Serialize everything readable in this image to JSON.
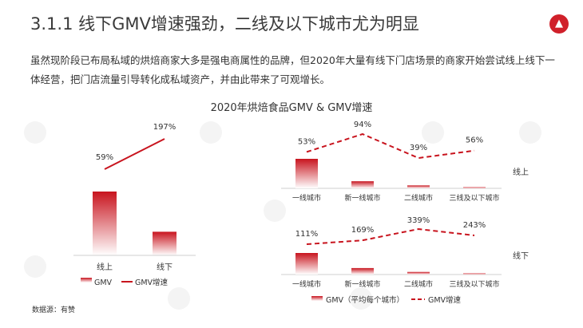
{
  "header": {
    "title": "3.1.1 线下GMV增速强劲，二线及以下城市尤为明显",
    "logo_icon": "thumbs-up-icon",
    "paragraph": "虽然现阶段已布局私域的烘焙商家大多是强电商属性的品牌，但2020年大量有线下门店场景的商家开始尝试线上线下一体经营，把门店流量引导转化成私域资产，并由此带来了可观增长。"
  },
  "chart_title": "2020年烘焙食品GMV & GMV增速",
  "source": "数据源：有赞",
  "colors": {
    "bar_top": "#c8141e",
    "bar_bottom": "#ffffff",
    "line": "#c8141e",
    "brand": "#d0202a"
  },
  "chart_data": [
    {
      "type": "bar",
      "categories": [
        "线上",
        "线下"
      ],
      "series": [
        {
          "name": "GMV",
          "values": [
            1.0,
            0.37
          ]
        },
        {
          "name": "GMV增速",
          "type": "line",
          "values": [
            59,
            197
          ],
          "labels": [
            "59%",
            "197%"
          ]
        }
      ],
      "legend": [
        "GMV",
        "GMV增速"
      ],
      "legend_position": "bottom"
    },
    {
      "type": "bar",
      "row_label": "线上",
      "categories": [
        "一线城市",
        "新一线城市",
        "二线城市",
        "三线及以下城市"
      ],
      "series": [
        {
          "name": "GMV（平均每个城市）",
          "values": [
            1.0,
            0.24,
            0.1,
            0.03
          ]
        },
        {
          "name": "GMV增速",
          "type": "line",
          "style": "dashed",
          "values": [
            53,
            94,
            39,
            56
          ],
          "labels": [
            "53%",
            "94%",
            "39%",
            "56%"
          ]
        }
      ]
    },
    {
      "type": "bar",
      "row_label": "线下",
      "categories": [
        "一线城市",
        "新一线城市",
        "二线城市",
        "三线及以下城市"
      ],
      "series": [
        {
          "name": "GMV（平均每个城市）",
          "values": [
            1.0,
            0.3,
            0.12,
            0.04
          ]
        },
        {
          "name": "GMV增速",
          "type": "line",
          "style": "dashed",
          "values": [
            111,
            169,
            339,
            243
          ],
          "labels": [
            "111%",
            "169%",
            "339%",
            "243%"
          ]
        }
      ],
      "legend": [
        "GMV（平均每个城市）",
        "GMV增速"
      ],
      "legend_position": "bottom"
    }
  ]
}
